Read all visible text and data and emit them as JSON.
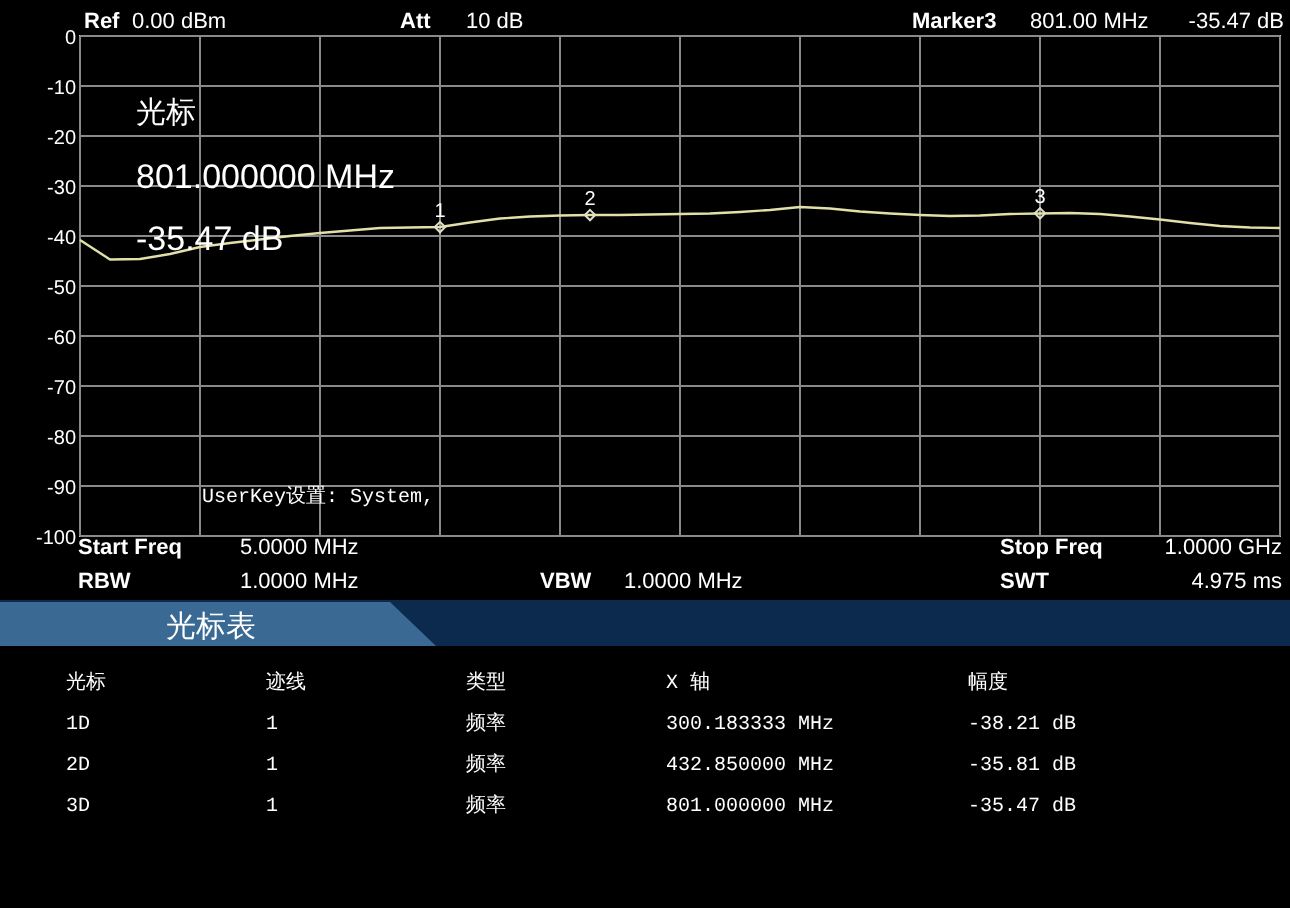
{
  "chart_data": {
    "type": "line",
    "categories": [
      null,
      null,
      null,
      null,
      null,
      null,
      null,
      null,
      null,
      null,
      null,
      null,
      null,
      null,
      null,
      null,
      null,
      null,
      null,
      null,
      null,
      null,
      null,
      null,
      null,
      null,
      null,
      null,
      null,
      null,
      null,
      null,
      null,
      null,
      null,
      null,
      null,
      null,
      null,
      null,
      null
    ],
    "ylim": [
      -100,
      0
    ],
    "yticks": [
      0,
      -10,
      -20,
      -30,
      -40,
      -50,
      -60,
      -70,
      -80,
      -90,
      -100
    ],
    "grid": true,
    "series": [
      {
        "color": "#e0e0a8",
        "values": [
          -40.8,
          -44.7,
          -44.6,
          -43.6,
          -42.2,
          -41.4,
          -40.7,
          -40.0,
          -39.4,
          -38.9,
          -38.4,
          -38.3,
          -38.2,
          -37.3,
          -36.5,
          -36.1,
          -35.9,
          -35.8,
          -35.8,
          -35.7,
          -35.6,
          -35.5,
          -35.2,
          -34.8,
          -34.2,
          -34.5,
          -35.1,
          -35.5,
          -35.8,
          -36.0,
          -35.9,
          -35.6,
          -35.5,
          -35.4,
          -35.6,
          -36.1,
          -36.7,
          -37.4,
          -38.0,
          -38.3,
          -38.4
        ]
      },
      {
        "type": "scatter",
        "color": "#e0e0c8",
        "marker": "diamond",
        "values": [
          null,
          null,
          null,
          null,
          null,
          null,
          null,
          null,
          null,
          null,
          null,
          null,
          -38.21,
          null,
          null,
          null,
          null,
          -35.81,
          null,
          null,
          null,
          null,
          null,
          null,
          null,
          null,
          null,
          null,
          null,
          null,
          null,
          null,
          -35.47,
          null,
          null,
          null,
          null,
          null,
          null,
          null,
          null
        ]
      }
    ],
    "annotations": [
      "1",
      "2",
      "3",
      "Ref",
      "0.00 dBm",
      "Att",
      "10 dB",
      "Marker3",
      "801.00 MHz",
      "-35.47 dB",
      "光标",
      "801.000000 MHz",
      "-35.47 dB",
      "UserKey设置:  System,",
      "Start Freq",
      "5.0000 MHz",
      "Stop Freq",
      "1.0000 GHz",
      "RBW",
      "1.0000 MHz",
      "VBW",
      "1.0000 MHz",
      "SWT",
      "4.975 ms",
      "光标表",
      "光标",
      "迹线",
      "类型",
      "X 轴",
      "幅度",
      "1D",
      "1",
      "频率",
      "300.183333 MHz",
      "-38.21 dB",
      "2D",
      "1",
      "频率",
      "432.850000 MHz",
      "-35.81 dB",
      "3D",
      "1",
      "频率",
      "801.000000 MHz",
      "-35.47 dB"
    ]
  }
}
